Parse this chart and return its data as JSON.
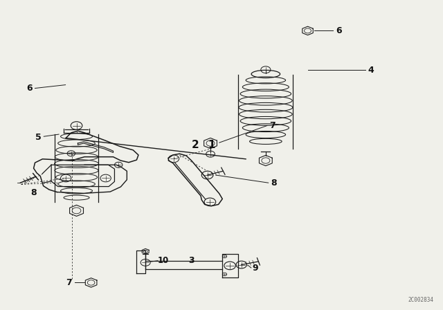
{
  "bg_color": "#f0f0ea",
  "line_color": "#1a1a1a",
  "label_color": "#111111",
  "watermark": "2C002834"
}
